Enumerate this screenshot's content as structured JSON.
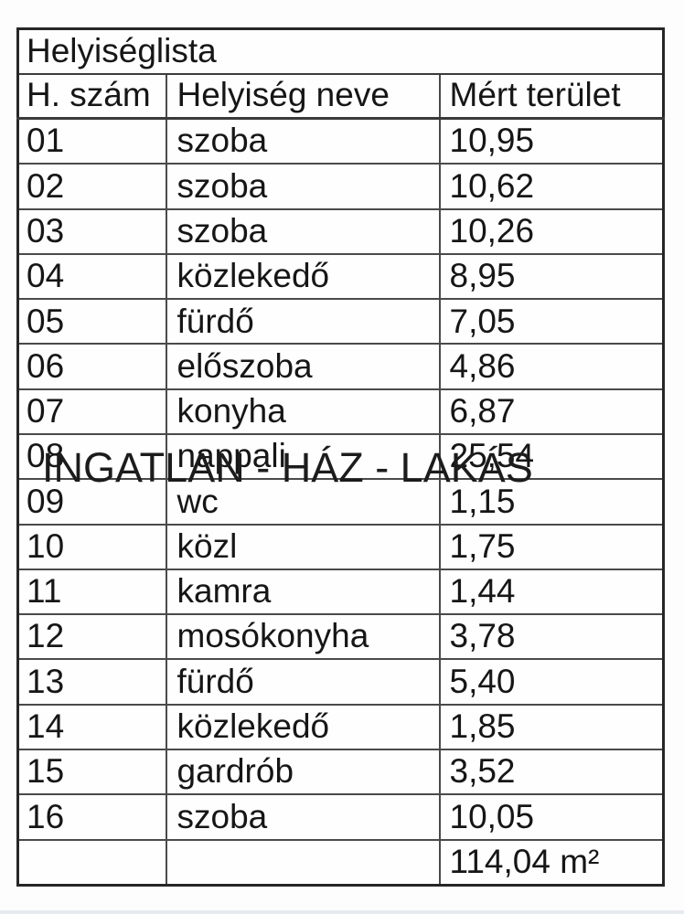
{
  "table": {
    "title": "Helyiséglista",
    "columns": [
      "H. szám",
      "Helyiség neve",
      "Mért terület"
    ],
    "rows": [
      {
        "num": "01",
        "name": "szoba",
        "area": "10,95"
      },
      {
        "num": "02",
        "name": "szoba",
        "area": "10,62"
      },
      {
        "num": "03",
        "name": "szoba",
        "area": "10,26"
      },
      {
        "num": "04",
        "name": "közlekedő",
        "area": "8,95"
      },
      {
        "num": "05",
        "name": "fürdő",
        "area": "7,05"
      },
      {
        "num": "06",
        "name": "előszoba",
        "area": "4,86"
      },
      {
        "num": "07",
        "name": "konyha",
        "area": "6,87"
      },
      {
        "num": "08",
        "name": "nappali",
        "area": "25,54"
      },
      {
        "num": "09",
        "name": "wc",
        "area": "1,15"
      },
      {
        "num": "10",
        "name": "közl",
        "area": "1,75"
      },
      {
        "num": "11",
        "name": "kamra",
        "area": "1,44"
      },
      {
        "num": "12",
        "name": "mosókonyha",
        "area": "3,78"
      },
      {
        "num": "13",
        "name": "fürdő",
        "area": "5,40"
      },
      {
        "num": "14",
        "name": "közlekedő",
        "area": "1,85"
      },
      {
        "num": "15",
        "name": "gardrób",
        "area": "3,52"
      },
      {
        "num": "16",
        "name": "szoba",
        "area": "10,05"
      }
    ],
    "total_area": "114,04 m²"
  },
  "watermark": {
    "text": "INGATLAN - HÁZ - LAKÁS"
  },
  "colors": {
    "background": "#fdfdfd",
    "border_outer": "#262626",
    "border_inner": "#4a4a4a",
    "text": "#161616"
  }
}
